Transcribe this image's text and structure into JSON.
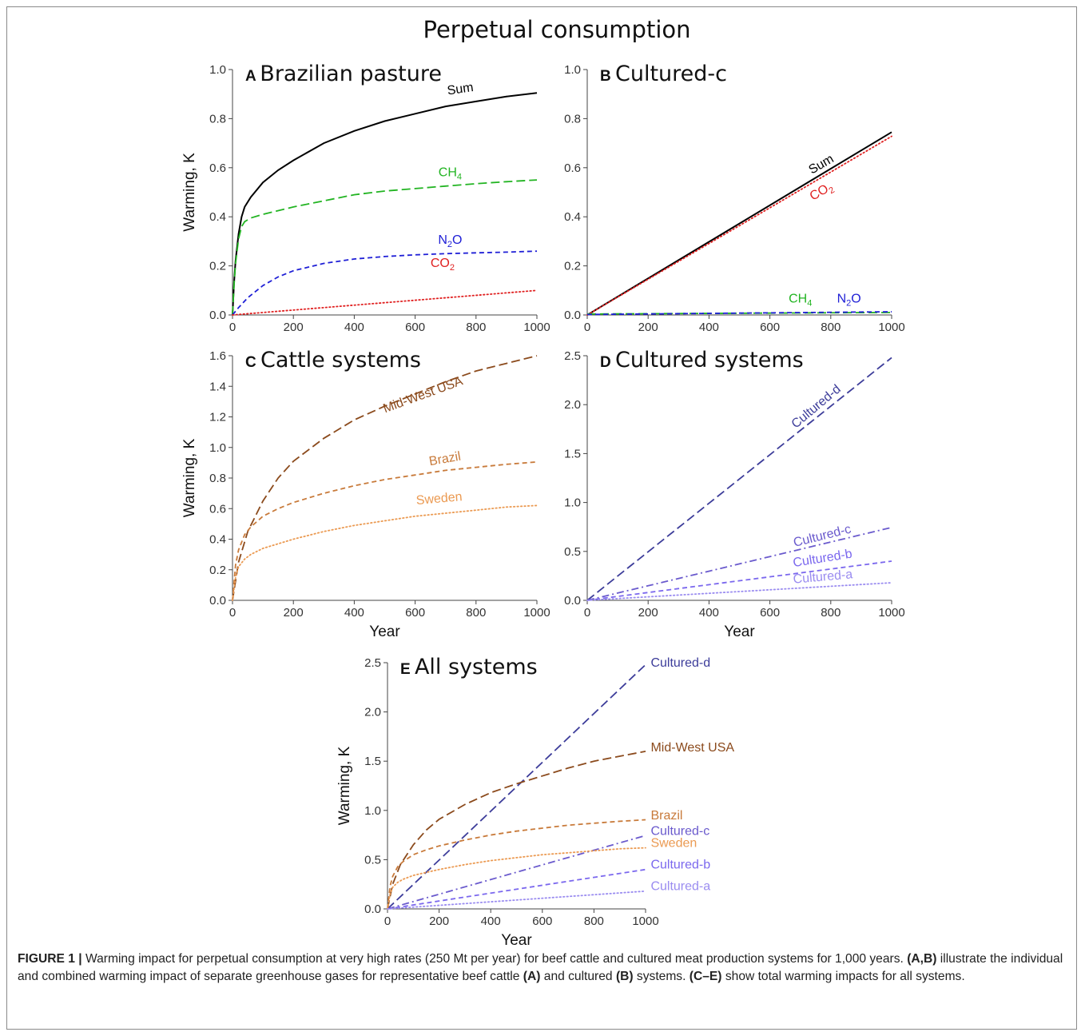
{
  "figure_title": "Perpetual consumption",
  "chart_data": [
    {
      "panel": "A",
      "title": "Brazilian pasture",
      "type": "line",
      "ylabel": "Warming, K",
      "xlabel": "",
      "xlim": [
        0,
        1000
      ],
      "ylim": [
        0,
        1.0
      ],
      "xticks": [
        "0",
        "200",
        "400",
        "600",
        "800",
        "1000"
      ],
      "yticks": [
        "0.0",
        "0.2",
        "0.4",
        "0.6",
        "0.8",
        "1.0"
      ],
      "series": [
        {
          "name": "Sum",
          "label_main": "Sum",
          "label_sub": "",
          "color": "#000000",
          "dash": "solid",
          "x": [
            0,
            5,
            10,
            20,
            30,
            40,
            60,
            100,
            150,
            200,
            300,
            400,
            500,
            600,
            700,
            800,
            900,
            1000
          ],
          "y": [
            0,
            0.13,
            0.22,
            0.33,
            0.4,
            0.44,
            0.48,
            0.54,
            0.59,
            0.63,
            0.7,
            0.75,
            0.79,
            0.82,
            0.85,
            0.87,
            0.89,
            0.905
          ]
        },
        {
          "name": "CH4",
          "label_main": "CH",
          "label_sub": "4",
          "color": "#22b422",
          "dash": "longdash",
          "x": [
            0,
            5,
            10,
            20,
            30,
            40,
            60,
            100,
            200,
            300,
            400,
            500,
            600,
            700,
            800,
            900,
            1000
          ],
          "y": [
            0,
            0.12,
            0.21,
            0.31,
            0.36,
            0.38,
            0.395,
            0.41,
            0.44,
            0.465,
            0.49,
            0.505,
            0.515,
            0.525,
            0.535,
            0.543,
            0.55
          ]
        },
        {
          "name": "N2O",
          "label_main": "N",
          "label_sub": "2",
          "label_tail": "O",
          "color": "#1f1fd6",
          "dash": "dash",
          "x": [
            0,
            20,
            50,
            100,
            150,
            200,
            300,
            400,
            500,
            600,
            700,
            800,
            900,
            1000
          ],
          "y": [
            0,
            0.03,
            0.07,
            0.12,
            0.155,
            0.18,
            0.21,
            0.228,
            0.238,
            0.245,
            0.25,
            0.253,
            0.256,
            0.26
          ]
        },
        {
          "name": "CO2",
          "label_main": "CO",
          "label_sub": "2",
          "color": "#e02020",
          "dash": "dot",
          "x": [
            0,
            1000
          ],
          "y": [
            0,
            0.1
          ]
        }
      ],
      "labels": [
        {
          "text": "Sum",
          "x": 750,
          "y": 0.905,
          "rot": -8,
          "color": "#000000"
        },
        {
          "main": "CH",
          "sub": "4",
          "x": 715,
          "y": 0.565,
          "rot": 0,
          "color": "#22b422"
        },
        {
          "main": "N",
          "sub": "2",
          "tail": "O",
          "x": 715,
          "y": 0.29,
          "rot": 0,
          "color": "#1f1fd6"
        },
        {
          "main": "CO",
          "sub": "2",
          "x": 690,
          "y": 0.195,
          "rot": 0,
          "color": "#e02020"
        }
      ]
    },
    {
      "panel": "B",
      "title": "Cultured-c",
      "type": "line",
      "ylabel": "",
      "xlabel": "",
      "xlim": [
        0,
        1000
      ],
      "ylim": [
        0,
        1.0
      ],
      "xticks": [
        "0",
        "200",
        "400",
        "600",
        "800",
        "1000"
      ],
      "yticks": [
        "0.0",
        "0.2",
        "0.4",
        "0.6",
        "0.8",
        "1.0"
      ],
      "series": [
        {
          "name": "Sum",
          "color": "#000000",
          "dash": "solid",
          "x": [
            0,
            1000
          ],
          "y": [
            0,
            0.745
          ]
        },
        {
          "name": "CO2",
          "color": "#e02020",
          "dash": "dot",
          "x": [
            0,
            1000
          ],
          "y": [
            0,
            0.728
          ]
        },
        {
          "name": "CH4",
          "color": "#22b422",
          "dash": "longdash",
          "x": [
            0,
            1000
          ],
          "y": [
            0.004,
            0.01
          ]
        },
        {
          "name": "N2O",
          "color": "#1f1fd6",
          "dash": "dash",
          "x": [
            0,
            1000
          ],
          "y": [
            0.002,
            0.013
          ]
        }
      ],
      "labels": [
        {
          "text": "Sum",
          "x": 775,
          "y": 0.6,
          "rot": -30,
          "color": "#000000"
        },
        {
          "main": "CO",
          "sub": "2",
          "x": 775,
          "y": 0.49,
          "rot": -30,
          "color": "#e02020"
        },
        {
          "main": "CH",
          "sub": "4",
          "x": 700,
          "y": 0.05,
          "rot": 0,
          "color": "#22b422"
        },
        {
          "main": "N",
          "sub": "2",
          "tail": "O",
          "x": 860,
          "y": 0.05,
          "rot": 0,
          "color": "#1f1fd6"
        }
      ]
    },
    {
      "panel": "C",
      "title": "Cattle systems",
      "type": "line",
      "ylabel": "Warming, K",
      "xlabel": "Year",
      "xlim": [
        0,
        1000
      ],
      "ylim": [
        0,
        1.6
      ],
      "xticks": [
        "0",
        "200",
        "400",
        "600",
        "800",
        "1000"
      ],
      "yticks": [
        "0.0",
        "0.2",
        "0.4",
        "0.6",
        "0.8",
        "1.0",
        "1.2",
        "1.4",
        "1.6"
      ],
      "series": [
        {
          "name": "Mid-West USA",
          "color": "#8b4a1c",
          "dash": "longdash",
          "x": [
            0,
            20,
            50,
            100,
            150,
            200,
            300,
            400,
            500,
            600,
            700,
            800,
            900,
            1000
          ],
          "y": [
            0,
            0.25,
            0.45,
            0.65,
            0.8,
            0.91,
            1.06,
            1.18,
            1.27,
            1.35,
            1.43,
            1.5,
            1.55,
            1.6
          ]
        },
        {
          "name": "Brazil",
          "color": "#c87a3a",
          "dash": "dash",
          "x": [
            0,
            10,
            20,
            40,
            60,
            100,
            150,
            200,
            300,
            400,
            500,
            600,
            700,
            800,
            900,
            1000
          ],
          "y": [
            0,
            0.23,
            0.33,
            0.43,
            0.48,
            0.55,
            0.6,
            0.64,
            0.7,
            0.75,
            0.79,
            0.82,
            0.85,
            0.87,
            0.89,
            0.905
          ]
        },
        {
          "name": "Sweden",
          "color": "#eb9a52",
          "dash": "dot",
          "x": [
            0,
            10,
            20,
            40,
            60,
            100,
            200,
            300,
            400,
            500,
            600,
            700,
            800,
            900,
            1000
          ],
          "y": [
            0,
            0.15,
            0.22,
            0.27,
            0.3,
            0.34,
            0.4,
            0.45,
            0.49,
            0.52,
            0.55,
            0.57,
            0.59,
            0.61,
            0.62
          ]
        }
      ],
      "labels": [
        {
          "text": "Mid-West USA",
          "x": 630,
          "y": 1.32,
          "rot": -20,
          "color": "#8b4a1c"
        },
        {
          "text": "Brazil",
          "x": 700,
          "y": 0.9,
          "rot": -10,
          "color": "#c87a3a"
        },
        {
          "text": "Sweden",
          "x": 680,
          "y": 0.64,
          "rot": -5,
          "color": "#eb9a52"
        }
      ]
    },
    {
      "panel": "D",
      "title": "Cultured systems",
      "type": "line",
      "ylabel": "",
      "xlabel": "Year",
      "xlim": [
        0,
        1000
      ],
      "ylim": [
        0,
        2.5
      ],
      "xticks": [
        "0",
        "200",
        "400",
        "600",
        "800",
        "1000"
      ],
      "yticks": [
        "0.0",
        "0.5",
        "1.0",
        "1.5",
        "2.0",
        "2.5"
      ],
      "series": [
        {
          "name": "Cultured-d",
          "color": "#3d3d9a",
          "dash": "longdash",
          "x": [
            0,
            1000
          ],
          "y": [
            0,
            2.48
          ]
        },
        {
          "name": "Cultured-c",
          "color": "#6a5acd",
          "dash": "dashdot",
          "x": [
            0,
            1000
          ],
          "y": [
            0,
            0.745
          ]
        },
        {
          "name": "Cultured-b",
          "color": "#7b68ee",
          "dash": "dash",
          "x": [
            0,
            1000
          ],
          "y": [
            0,
            0.4
          ]
        },
        {
          "name": "Cultured-a",
          "color": "#9a8cf0",
          "dash": "dot",
          "x": [
            0,
            1000
          ],
          "y": [
            0,
            0.18
          ]
        }
      ],
      "labels": [
        {
          "text": "Cultured-d",
          "x": 760,
          "y": 1.95,
          "rot": -40,
          "color": "#3d3d9a"
        },
        {
          "text": "Cultured-c",
          "x": 775,
          "y": 0.62,
          "rot": -14,
          "color": "#6a5acd"
        },
        {
          "text": "Cultured-b",
          "x": 775,
          "y": 0.39,
          "rot": -9,
          "color": "#7b68ee"
        },
        {
          "text": "Cultured-a",
          "x": 775,
          "y": 0.2,
          "rot": -5,
          "color": "#9a8cf0"
        }
      ]
    },
    {
      "panel": "E",
      "title": "All systems",
      "type": "line",
      "ylabel": "Warming, K",
      "xlabel": "Year",
      "xlim": [
        0,
        1000
      ],
      "ylim": [
        0,
        2.5
      ],
      "xticks": [
        "0",
        "200",
        "400",
        "600",
        "800",
        "1000"
      ],
      "yticks": [
        "0.0",
        "0.5",
        "1.0",
        "1.5",
        "2.0",
        "2.5"
      ],
      "series": [
        {
          "name": "Cultured-d",
          "color": "#3d3d9a",
          "dash": "longdash",
          "x": [
            0,
            1000
          ],
          "y": [
            0,
            2.48
          ]
        },
        {
          "name": "Mid-West USA",
          "color": "#8b4a1c",
          "dash": "longdash",
          "x": [
            0,
            20,
            50,
            100,
            150,
            200,
            300,
            400,
            500,
            600,
            700,
            800,
            900,
            1000
          ],
          "y": [
            0,
            0.25,
            0.45,
            0.65,
            0.8,
            0.91,
            1.06,
            1.18,
            1.27,
            1.35,
            1.43,
            1.5,
            1.55,
            1.6
          ]
        },
        {
          "name": "Brazil",
          "color": "#c87a3a",
          "dash": "dash",
          "x": [
            0,
            10,
            20,
            40,
            60,
            100,
            150,
            200,
            300,
            400,
            500,
            600,
            700,
            800,
            900,
            1000
          ],
          "y": [
            0,
            0.23,
            0.33,
            0.43,
            0.48,
            0.55,
            0.6,
            0.64,
            0.7,
            0.75,
            0.79,
            0.82,
            0.85,
            0.87,
            0.89,
            0.905
          ]
        },
        {
          "name": "Cultured-c",
          "color": "#6a5acd",
          "dash": "dashdot",
          "x": [
            0,
            1000
          ],
          "y": [
            0,
            0.745
          ]
        },
        {
          "name": "Sweden",
          "color": "#eb9a52",
          "dash": "dot",
          "x": [
            0,
            10,
            20,
            40,
            60,
            100,
            200,
            300,
            400,
            500,
            600,
            700,
            800,
            900,
            1000
          ],
          "y": [
            0,
            0.15,
            0.22,
            0.27,
            0.3,
            0.34,
            0.4,
            0.45,
            0.49,
            0.52,
            0.55,
            0.57,
            0.59,
            0.61,
            0.62
          ]
        },
        {
          "name": "Cultured-b",
          "color": "#7b68ee",
          "dash": "dash",
          "x": [
            0,
            1000
          ],
          "y": [
            0,
            0.4
          ]
        },
        {
          "name": "Cultured-a",
          "color": "#9a8cf0",
          "dash": "dot",
          "x": [
            0,
            1000
          ],
          "y": [
            0,
            0.18
          ]
        }
      ],
      "labels": [
        {
          "text": "Cultured-d",
          "x": 1020,
          "y": 2.46,
          "rot": 0,
          "color": "#3d3d9a",
          "anchor": "start"
        },
        {
          "text": "Mid-West USA",
          "x": 1020,
          "y": 1.6,
          "rot": 0,
          "color": "#8b4a1c",
          "anchor": "start"
        },
        {
          "text": "Brazil",
          "x": 1020,
          "y": 0.91,
          "rot": 0,
          "color": "#c87a3a",
          "anchor": "start"
        },
        {
          "text": "Cultured-c",
          "x": 1020,
          "y": 0.75,
          "rot": 0,
          "color": "#6a5acd",
          "anchor": "start"
        },
        {
          "text": "Sweden",
          "x": 1020,
          "y": 0.63,
          "rot": 0,
          "color": "#eb9a52",
          "anchor": "start"
        },
        {
          "text": "Cultured-b",
          "x": 1020,
          "y": 0.41,
          "rot": 0,
          "color": "#7b68ee",
          "anchor": "start"
        },
        {
          "text": "Cultured-a",
          "x": 1020,
          "y": 0.19,
          "rot": 0,
          "color": "#9a8cf0",
          "anchor": "start"
        }
      ]
    }
  ],
  "caption": {
    "label": "FIGURE 1 |",
    "text_1": " Warming impact for perpetual consumption at very high rates (250 Mt per year) for beef cattle and cultured meat production systems for 1,000 years. ",
    "bold_ab": "(A,B)",
    "text_2": " illustrate the individual and combined warming impact of separate greenhouse gases for representative beef cattle ",
    "bold_a": "(A)",
    "text_3": " and cultured ",
    "bold_b": "(B)",
    "text_4": " systems. ",
    "bold_ce": "(C–E)",
    "text_5": " show total warming impacts for all systems."
  }
}
